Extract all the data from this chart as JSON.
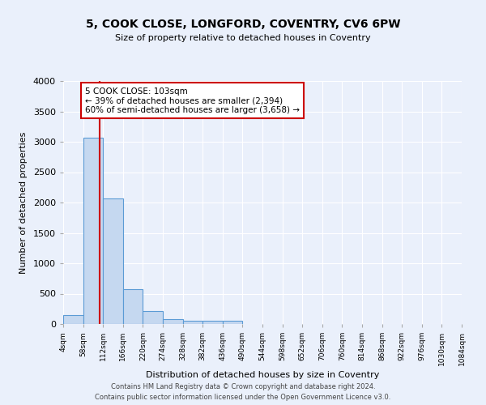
{
  "title": "5, COOK CLOSE, LONGFORD, COVENTRY, CV6 6PW",
  "subtitle": "Size of property relative to detached houses in Coventry",
  "xlabel": "Distribution of detached houses by size in Coventry",
  "ylabel": "Number of detached properties",
  "bin_edges": [
    4,
    58,
    112,
    166,
    220,
    274,
    328,
    382,
    436,
    490,
    544,
    598,
    652,
    706,
    760,
    814,
    868,
    922,
    976,
    1030,
    1084
  ],
  "bar_heights": [
    150,
    3070,
    2070,
    570,
    210,
    75,
    55,
    50,
    55,
    0,
    0,
    0,
    0,
    0,
    0,
    0,
    0,
    0,
    0,
    0
  ],
  "bar_color": "#c5d8f0",
  "bar_edge_color": "#5b9bd5",
  "vline_color": "#cc0000",
  "vline_x": 103,
  "annotation_text": "5 COOK CLOSE: 103sqm\n← 39% of detached houses are smaller (2,394)\n60% of semi-detached houses are larger (3,658) →",
  "annotation_box_color": "#ffffff",
  "annotation_box_edge_color": "#cc0000",
  "ylim": [
    0,
    4000
  ],
  "yticks": [
    0,
    500,
    1000,
    1500,
    2000,
    2500,
    3000,
    3500,
    4000
  ],
  "background_color": "#eaf0fb",
  "grid_color": "#ffffff",
  "footer_line1": "Contains HM Land Registry data © Crown copyright and database right 2024.",
  "footer_line2": "Contains public sector information licensed under the Open Government Licence v3.0."
}
